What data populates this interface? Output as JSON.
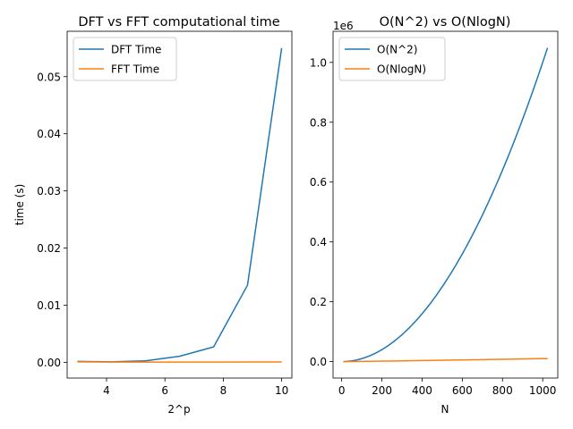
{
  "chart_data": [
    {
      "type": "line",
      "title": "DFT vs FFT computational time",
      "xlabel": "2^p",
      "ylabel": "time (s)",
      "xlim": [
        2.65,
        10.35
      ],
      "ylim": [
        -0.00276,
        0.05794
      ],
      "xticks": [
        4,
        6,
        8,
        10
      ],
      "xtick_labels": [
        "4",
        "6",
        "8",
        "10"
      ],
      "yticks": [
        0.0,
        0.01,
        0.02,
        0.03,
        0.04,
        0.05
      ],
      "ytick_labels": [
        "0.00",
        "0.01",
        "0.02",
        "0.03",
        "0.04",
        "0.05"
      ],
      "grid": false,
      "legend_position": "top-left",
      "series": [
        {
          "name": "DFT Time",
          "color": "#1f77b4",
          "x": [
            3.0,
            4.17,
            5.33,
            6.5,
            7.67,
            8.83,
            10.0
          ],
          "y": [
            0.00015,
            8e-05,
            0.00025,
            0.00105,
            0.0027,
            0.0135,
            0.055
          ]
        },
        {
          "name": "FFT Time",
          "color": "#ff7f0e",
          "x": [
            3.0,
            4.17,
            5.33,
            6.5,
            7.67,
            8.83,
            10.0
          ],
          "y": [
            8e-05,
            3e-05,
            3e-05,
            4e-05,
            3e-05,
            5e-05,
            6e-05
          ]
        }
      ]
    },
    {
      "type": "line",
      "title": "O(N^2) vs O(NlogN)",
      "xlabel": "N",
      "ylabel": "",
      "offset_label": "1e6",
      "xlim": [
        -43,
        1075
      ],
      "ylim": [
        -55000,
        1104000
      ],
      "xticks": [
        0,
        200,
        400,
        600,
        800,
        1000
      ],
      "xtick_labels": [
        "0",
        "200",
        "400",
        "600",
        "800",
        "1000"
      ],
      "yticks": [
        0.0,
        200000,
        400000,
        600000,
        800000,
        1000000
      ],
      "ytick_labels": [
        "0.0",
        "0.2",
        "0.4",
        "0.6",
        "0.8",
        "1.0"
      ],
      "grid": false,
      "legend_position": "top-left",
      "series": [
        {
          "name": "O(N^2)",
          "color": "#1f77b4",
          "function": "n^2",
          "x_range": [
            8,
            1024
          ]
        },
        {
          "name": "O(NlogN)",
          "color": "#ff7f0e",
          "function": "n*log2(n)",
          "x_range": [
            8,
            1024
          ]
        }
      ]
    }
  ]
}
